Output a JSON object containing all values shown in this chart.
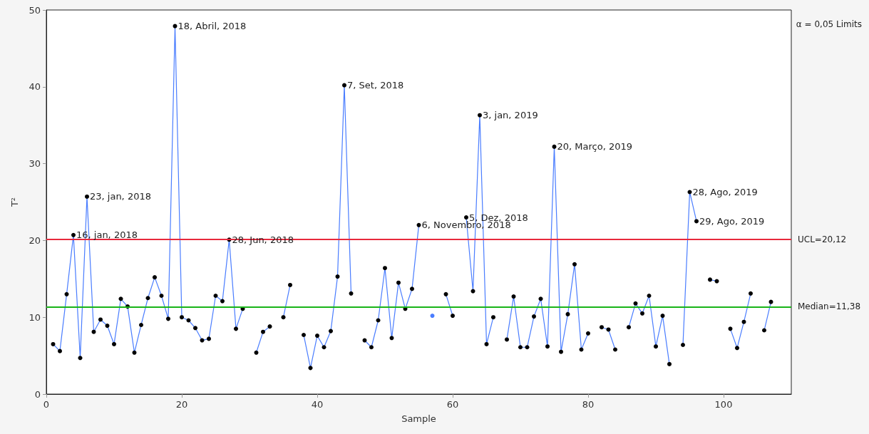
{
  "chart_data": {
    "type": "line",
    "xlabel": "Sample",
    "ylabel": "T²",
    "x": [
      1,
      2,
      3,
      4,
      5,
      6,
      7,
      8,
      9,
      10,
      11,
      12,
      13,
      14,
      15,
      16,
      17,
      18,
      19,
      20,
      21,
      22,
      23,
      24,
      25,
      26,
      27,
      28,
      29,
      30,
      31,
      32,
      33,
      34,
      35,
      36,
      37,
      38,
      39,
      40,
      41,
      42,
      43,
      44,
      45,
      46,
      47,
      48,
      49,
      50,
      51,
      52,
      53,
      54,
      55,
      56,
      57,
      58,
      59,
      60,
      61,
      62,
      63,
      64,
      65,
      66,
      67,
      68,
      69,
      70,
      71,
      72,
      73,
      74,
      75,
      76,
      77,
      78,
      79,
      80,
      81,
      82,
      83,
      84,
      85,
      86,
      87,
      88,
      89,
      90,
      91,
      92,
      93,
      94,
      95,
      96,
      97,
      98,
      99,
      100,
      101,
      102,
      103,
      104,
      105,
      106,
      107
    ],
    "series": [
      {
        "color": "#4a7dff",
        "values": [
          6.5,
          5.6,
          13.0,
          20.7,
          4.7,
          25.7,
          8.1,
          9.7,
          8.9,
          6.5,
          12.4,
          11.4,
          5.4,
          9.0,
          12.5,
          15.2,
          12.8,
          9.8,
          47.9,
          10.0,
          9.6,
          8.6,
          7.0,
          7.2,
          12.8,
          12.1,
          20.1,
          8.5,
          11.1,
          null,
          5.4,
          8.1,
          8.8,
          null,
          10.0,
          14.2,
          null,
          7.7,
          3.4,
          7.6,
          6.1,
          8.2,
          15.3,
          40.2,
          13.1,
          null,
          7.0,
          6.1,
          9.6,
          16.4,
          7.3,
          14.5,
          11.1,
          13.7,
          22.0,
          null,
          10.2,
          null,
          13.0,
          10.2,
          null,
          23.0,
          13.4,
          36.3,
          6.5,
          10.0,
          null,
          7.1,
          12.7,
          6.1,
          6.1,
          10.1,
          12.4,
          6.2,
          32.2,
          5.5,
          10.4,
          16.9,
          5.8,
          7.9,
          null,
          8.7,
          8.4,
          5.8,
          null,
          8.7,
          11.8,
          10.5,
          12.8,
          6.2,
          10.2,
          3.9,
          null,
          6.4,
          26.3,
          22.5,
          null,
          14.9,
          14.7,
          null,
          8.5,
          6.0,
          9.4,
          13.1,
          null,
          8.3,
          12.0
        ]
      }
    ],
    "marker": "circle",
    "xlim": [
      0,
      110
    ],
    "xticks": [
      0,
      20,
      40,
      60,
      80,
      100
    ],
    "ylim": [
      0,
      50
    ],
    "yticks": [
      0,
      10,
      20,
      30,
      40,
      50
    ],
    "grid": false,
    "ref_lines": [
      {
        "axis": "y",
        "value": 20.12,
        "label": "UCL=20,12",
        "color": "#e8283c"
      },
      {
        "axis": "y",
        "value": 11.38,
        "label": "Median=11,38",
        "color": "#18b418"
      }
    ],
    "annotations": [
      "α = 0,05 Limits",
      {
        "text": "16, jan, 2018",
        "x": 4,
        "y": 20.7
      },
      {
        "text": "23, jan, 2018",
        "x": 6,
        "y": 25.7
      },
      {
        "text": "18, Abril, 2018",
        "x": 19,
        "y": 47.9
      },
      {
        "text": "28, Jun, 2018",
        "x": 27,
        "y": 20.1
      },
      {
        "text": "7, Set, 2018",
        "x": 44,
        "y": 40.2
      },
      {
        "text": "6, Novembro, 2018",
        "x": 55,
        "y": 22.0
      },
      {
        "text": "5, Dez, 2018",
        "x": 62,
        "y": 23.0
      },
      {
        "text": "3, jan, 2019",
        "x": 64,
        "y": 36.3
      },
      {
        "text": "20, Março, 2019",
        "x": 75,
        "y": 32.2
      },
      {
        "text": "28, Ago, 2019",
        "x": 95,
        "y": 26.3
      },
      {
        "text": "29, Ago, 2019",
        "x": 96,
        "y": 22.5
      }
    ]
  }
}
